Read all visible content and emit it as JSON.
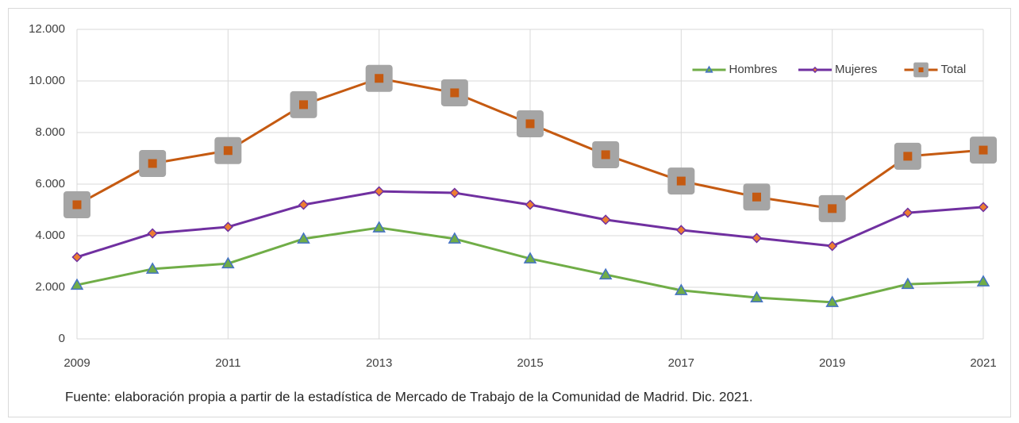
{
  "chart_data": {
    "type": "line",
    "x": [
      2009,
      2010,
      2011,
      2012,
      2013,
      2014,
      2015,
      2016,
      2017,
      2018,
      2019,
      2020,
      2021
    ],
    "xlim": [
      2009,
      2021
    ],
    "xticks": [
      2009,
      2011,
      2013,
      2015,
      2017,
      2019,
      2021
    ],
    "ylim": [
      0,
      12000
    ],
    "yticks": [
      0,
      {
        "value": 2000,
        "label": "2.000"
      },
      {
        "value": 4000,
        "label": "4.000"
      },
      {
        "value": 6000,
        "label": "6.000"
      },
      {
        "value": 8000,
        "label": "8.000"
      },
      {
        "value": 10000,
        "label": "10.000"
      },
      {
        "value": 12000,
        "label": "12.000"
      }
    ],
    "grid": true,
    "legend": "upper right",
    "series": [
      {
        "name": "Hombres",
        "color": "#70ad47",
        "marker": "triangle",
        "marker_fill": "#70ad47",
        "marker_edge": "#4472c4",
        "values": [
          2090,
          2710,
          2920,
          3880,
          4310,
          3880,
          3110,
          2490,
          1880,
          1600,
          1420,
          2120,
          2220
        ]
      },
      {
        "name": "Mujeres",
        "color": "#7030a0",
        "marker": "diamond",
        "marker_fill": "#ed7d31",
        "marker_edge": "#7030a0",
        "values": [
          3170,
          4090,
          4340,
          5200,
          5720,
          5660,
          5200,
          4620,
          4220,
          3910,
          3600,
          4890,
          5110
        ]
      },
      {
        "name": "Total",
        "color": "#c55a11",
        "marker": "square",
        "marker_fill": "#c55a11",
        "marker_edge": "#a5a5a5",
        "values": [
          5200,
          6800,
          7300,
          9080,
          10100,
          9540,
          8340,
          7140,
          6120,
          5500,
          5050,
          7080,
          7320
        ]
      }
    ],
    "note": "Fuente: elaboración propia a partir de la estadística de Mercado de Trabajo de la Comunidad de Madrid. Dic. 2021."
  }
}
